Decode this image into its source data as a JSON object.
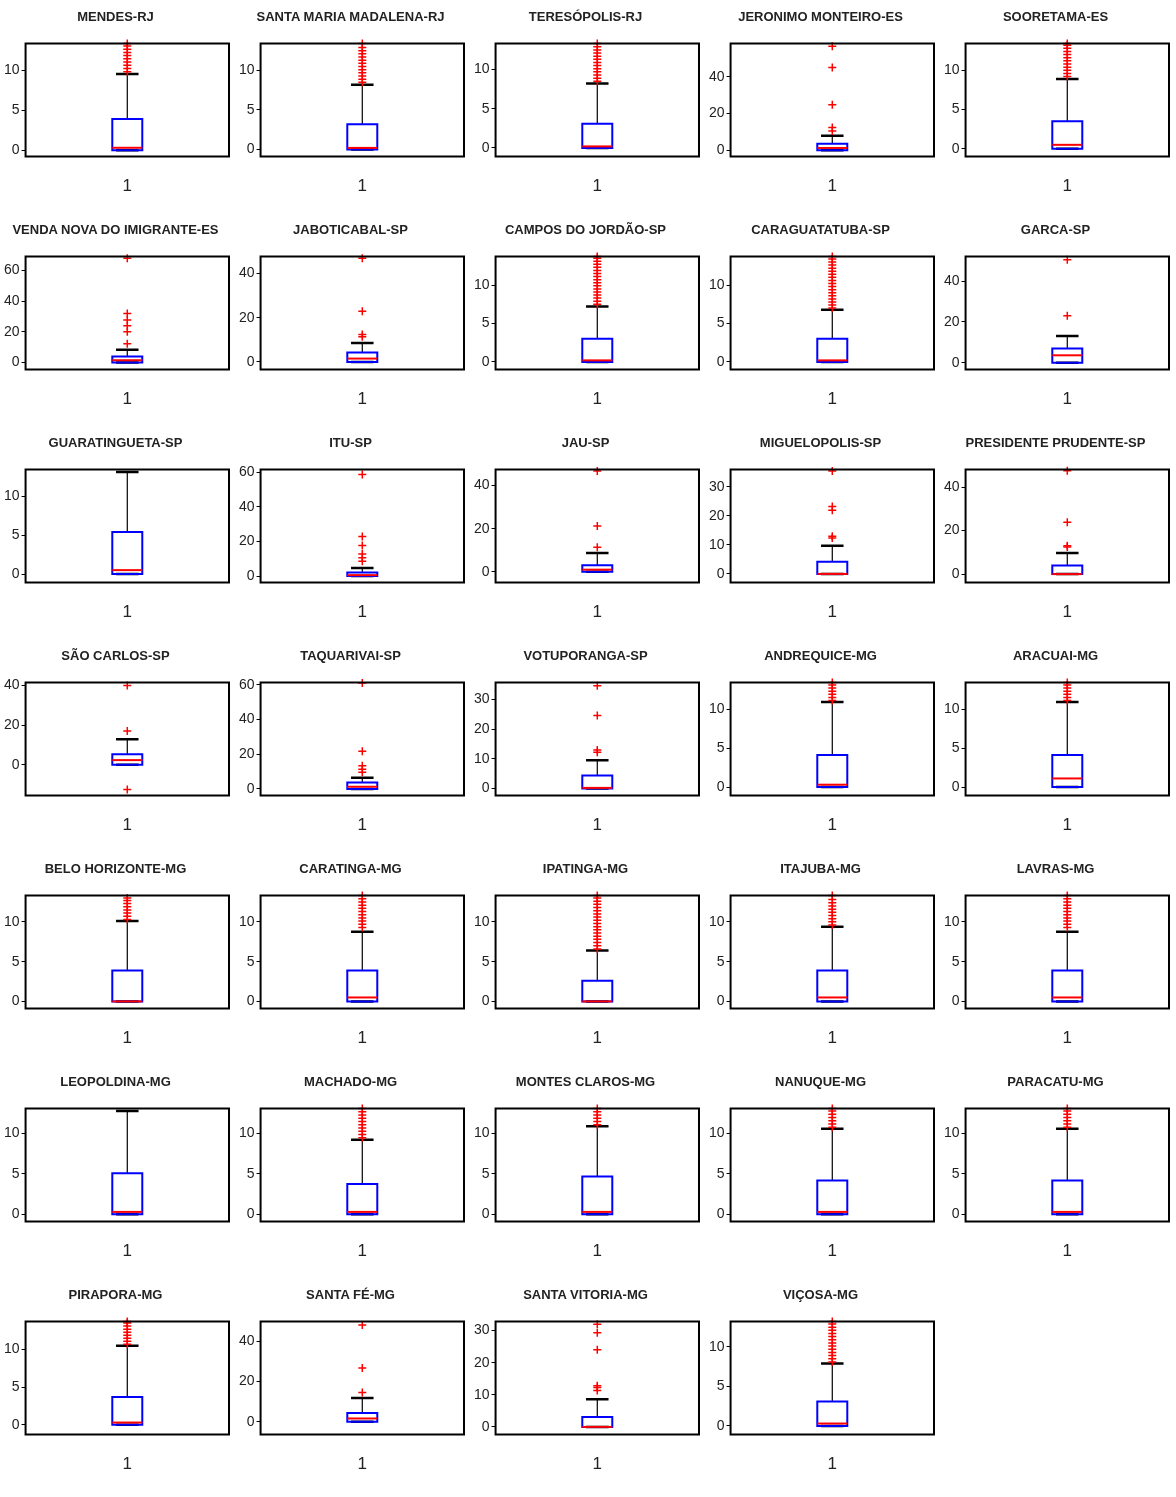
{
  "chart_data": [
    {
      "type": "box",
      "title": "MENDES-RJ",
      "categories": [
        "1"
      ],
      "ylim": [
        -0.8,
        13.3
      ],
      "yticks": [
        0,
        5,
        10
      ],
      "boxes": [
        {
          "low": 0,
          "q1": 0,
          "median": 0.3,
          "q3": 3.9,
          "high": 9.5,
          "outliers": [
            9.8,
            10.2,
            10.6,
            11,
            11.4,
            11.8,
            12.2,
            12.6,
            13,
            13.3
          ]
        }
      ]
    },
    {
      "type": "box",
      "title": "SANTA MARIA MADALENA-RJ",
      "categories": [
        "1"
      ],
      "ylim": [
        -0.9,
        13.4
      ],
      "yticks": [
        0,
        5,
        10
      ],
      "boxes": [
        {
          "low": 0,
          "q1": 0,
          "median": 0.2,
          "q3": 3.2,
          "high": 8.2,
          "outliers": [
            8.5,
            8.9,
            9.3,
            9.7,
            10.1,
            10.5,
            10.9,
            11.3,
            11.7,
            12.1,
            12.5,
            12.9,
            13.4
          ]
        }
      ]
    },
    {
      "type": "box",
      "title": "TERESÓPOLIS-RJ",
      "categories": [
        "1"
      ],
      "ylim": [
        -1.1,
        13.3
      ],
      "yticks": [
        0,
        5,
        10
      ],
      "boxes": [
        {
          "low": 0,
          "q1": 0,
          "median": 0.2,
          "q3": 3.1,
          "high": 8.2,
          "outliers": [
            8.5,
            8.9,
            9.3,
            9.7,
            10.1,
            10.5,
            10.9,
            11.3,
            11.7,
            12.1,
            12.5,
            12.9,
            13.3
          ]
        }
      ]
    },
    {
      "type": "box",
      "title": "JERONIMO MONTEIRO-ES",
      "categories": [
        "1"
      ],
      "ylim": [
        -3.5,
        58
      ],
      "yticks": [
        0,
        20,
        40
      ],
      "boxes": [
        {
          "low": 0,
          "q1": 0,
          "median": 1.2,
          "q3": 3.5,
          "high": 7.8,
          "outliers": [
            10.4,
            12.4,
            24.7,
            45,
            56.5
          ]
        }
      ]
    },
    {
      "type": "box",
      "title": "SOORETAMA-ES",
      "categories": [
        "1"
      ],
      "ylim": [
        -1,
        13.4
      ],
      "yticks": [
        0,
        5,
        10
      ],
      "boxes": [
        {
          "low": 0,
          "q1": 0,
          "median": 0.5,
          "q3": 3.5,
          "high": 8.9,
          "outliers": [
            9.2,
            9.6,
            10,
            10.4,
            10.8,
            11.2,
            11.6,
            12,
            12.4,
            12.8,
            13.2,
            13.4
          ]
        }
      ]
    },
    {
      "type": "box",
      "title": "VENDA NOVA DO IMIGRANTE-ES",
      "categories": [
        "1"
      ],
      "ylim": [
        -4.6,
        69
      ],
      "yticks": [
        0,
        20,
        40,
        60
      ],
      "boxes": [
        {
          "low": 0,
          "q1": 0,
          "median": 1.5,
          "q3": 4,
          "high": 8.3,
          "outliers": [
            12.2,
            20,
            24,
            27.7,
            32,
            68
          ]
        }
      ]
    },
    {
      "type": "box",
      "title": "JABOTICABAL-SP",
      "categories": [
        "1"
      ],
      "ylim": [
        -3.5,
        47.7
      ],
      "yticks": [
        0,
        20,
        40
      ],
      "boxes": [
        {
          "low": 0,
          "q1": 0,
          "median": 1.5,
          "q3": 4.2,
          "high": 8.6,
          "outliers": [
            11.4,
            12.4,
            22.9,
            47
          ]
        }
      ]
    },
    {
      "type": "box",
      "title": "CAMPOS DO JORDÃO-SP",
      "categories": [
        "1"
      ],
      "ylim": [
        -1,
        13.7
      ],
      "yticks": [
        0,
        5,
        10
      ],
      "boxes": [
        {
          "low": 0,
          "q1": 0,
          "median": 0.2,
          "q3": 3,
          "high": 7.2,
          "outliers": [
            7.5,
            7.9,
            8.3,
            8.7,
            9.1,
            9.5,
            9.9,
            10.3,
            10.7,
            11.1,
            11.5,
            11.9,
            12.3,
            12.7,
            13.1,
            13.5,
            13.7
          ]
        }
      ]
    },
    {
      "type": "box",
      "title": "CARAGUATATUBA-SP",
      "categories": [
        "1"
      ],
      "ylim": [
        -1,
        13.7
      ],
      "yticks": [
        0,
        5,
        10
      ],
      "boxes": [
        {
          "low": 0,
          "q1": 0,
          "median": 0.2,
          "q3": 3,
          "high": 6.8,
          "outliers": [
            7,
            7.4,
            7.8,
            8.2,
            8.6,
            9,
            9.4,
            9.8,
            10.2,
            10.6,
            11,
            11.4,
            11.8,
            12.2,
            12.6,
            13,
            13.4,
            13.7
          ]
        }
      ]
    },
    {
      "type": "box",
      "title": "GARCA-SP",
      "categories": [
        "1"
      ],
      "ylim": [
        -3.3,
        52
      ],
      "yticks": [
        0,
        20,
        40
      ],
      "boxes": [
        {
          "low": 0,
          "q1": 0,
          "median": 3.7,
          "q3": 7,
          "high": 13.2,
          "outliers": [
            23,
            50.5
          ]
        }
      ]
    },
    {
      "type": "box",
      "title": "GUARATINGUETA-SP",
      "categories": [
        "1"
      ],
      "ylim": [
        -1.1,
        13.4
      ],
      "yticks": [
        0,
        5,
        10
      ],
      "boxes": [
        {
          "low": 0,
          "q1": 0,
          "median": 0.5,
          "q3": 5.4,
          "high": 13.1
        }
      ]
    },
    {
      "type": "box",
      "title": "ITU-SP",
      "categories": [
        "1"
      ],
      "ylim": [
        -3.8,
        61.5
      ],
      "yticks": [
        0,
        20,
        40,
        60
      ],
      "boxes": [
        {
          "low": 0,
          "q1": 0,
          "median": 0.5,
          "q3": 2,
          "high": 4.6,
          "outliers": [
            8.6,
            10.6,
            12.7,
            17.7,
            22.8,
            58.7
          ]
        }
      ]
    },
    {
      "type": "box",
      "title": "JAU-SP",
      "categories": [
        "1"
      ],
      "ylim": [
        -5,
        47.4
      ],
      "yticks": [
        0,
        20,
        40
      ],
      "boxes": [
        {
          "low": 0,
          "q1": 0,
          "median": 1,
          "q3": 3,
          "high": 8.7,
          "outliers": [
            11.4,
            21.3,
            46.7
          ]
        }
      ]
    },
    {
      "type": "box",
      "title": "MIGUELOPOLIS-SP",
      "categories": [
        "1"
      ],
      "ylim": [
        -3,
        36
      ],
      "yticks": [
        0,
        10,
        20,
        30
      ],
      "boxes": [
        {
          "low": 0,
          "q1": 0,
          "median": 0,
          "q3": 4.2,
          "high": 9.7,
          "outliers": [
            12.4,
            13,
            22,
            23.3,
            35.5
          ]
        }
      ]
    },
    {
      "type": "box",
      "title": "PRESIDENTE PRUDENTE-SP",
      "categories": [
        "1"
      ],
      "ylim": [
        -3.9,
        48
      ],
      "yticks": [
        0,
        20,
        40
      ],
      "boxes": [
        {
          "low": 0,
          "q1": 0,
          "median": 0,
          "q3": 3.9,
          "high": 9.7,
          "outliers": [
            12.4,
            13,
            23.8,
            47.5
          ]
        }
      ]
    },
    {
      "type": "box",
      "title": "SÃO CARLOS-SP",
      "categories": [
        "1"
      ],
      "ylim": [
        -15.6,
        41.4
      ],
      "yticks": [
        0,
        20,
        40
      ],
      "boxes": [
        {
          "low": 0,
          "q1": 0,
          "median": 2.3,
          "q3": 5.3,
          "high": 12.8,
          "outliers": [
            -12.5,
            17,
            40
          ]
        }
      ]
    },
    {
      "type": "box",
      "title": "TAQUARIVAI-SP",
      "categories": [
        "1"
      ],
      "ylim": [
        -3.8,
        61.2
      ],
      "yticks": [
        0,
        20,
        40,
        60
      ],
      "boxes": [
        {
          "low": 0,
          "q1": 0,
          "median": 1.3,
          "q3": 3.8,
          "high": 6.4,
          "outliers": [
            9.6,
            11.4,
            13.4,
            21.7,
            61
          ]
        }
      ]
    },
    {
      "type": "box",
      "title": "VOTUPORANGA-SP",
      "categories": [
        "1"
      ],
      "ylim": [
        -2.4,
        35.7
      ],
      "yticks": [
        0,
        10,
        20,
        30
      ],
      "boxes": [
        {
          "low": 0,
          "q1": 0,
          "median": 0.2,
          "q3": 4.4,
          "high": 9.5,
          "outliers": [
            12.2,
            13,
            24.6,
            34.6
          ]
        }
      ]
    },
    {
      "type": "box",
      "title": "ANDREQUICE-MG",
      "categories": [
        "1"
      ],
      "ylim": [
        -1.1,
        13.4
      ],
      "yticks": [
        0,
        5,
        10
      ],
      "boxes": [
        {
          "low": 0,
          "q1": 0,
          "median": 0.3,
          "q3": 4.1,
          "high": 10.9,
          "outliers": [
            11.1,
            11.5,
            11.9,
            12.3,
            12.7,
            13.1,
            13.4
          ]
        }
      ]
    },
    {
      "type": "box",
      "title": "ARACUAI-MG",
      "categories": [
        "1"
      ],
      "ylim": [
        -1.1,
        13.4
      ],
      "yticks": [
        0,
        5,
        10
      ],
      "boxes": [
        {
          "low": 0,
          "q1": 0,
          "median": 1.1,
          "q3": 4.1,
          "high": 10.9,
          "outliers": [
            11.1,
            11.5,
            11.9,
            12.3,
            12.7,
            13.1,
            13.4
          ]
        }
      ]
    },
    {
      "type": "box",
      "title": "BELO HORIZONTE-MG",
      "categories": [
        "1"
      ],
      "ylim": [
        -0.9,
        13.3
      ],
      "yticks": [
        0,
        5,
        10
      ],
      "boxes": [
        {
          "low": 0,
          "q1": 0,
          "median": 0,
          "q3": 3.9,
          "high": 10.1,
          "outliers": [
            10.3,
            10.7,
            11.1,
            11.5,
            11.9,
            12.3,
            12.7,
            13
          ]
        }
      ]
    },
    {
      "type": "box",
      "title": "CARATINGA-MG",
      "categories": [
        "1"
      ],
      "ylim": [
        -0.9,
        13.3
      ],
      "yticks": [
        0,
        5,
        10
      ],
      "boxes": [
        {
          "low": 0,
          "q1": 0,
          "median": 0.5,
          "q3": 3.9,
          "high": 8.75,
          "outliers": [
            9.3,
            9.7,
            10.1,
            10.5,
            10.9,
            11.3,
            11.7,
            12.1,
            12.5,
            12.9,
            13.3
          ]
        }
      ]
    },
    {
      "type": "box",
      "title": "IPATINGA-MG",
      "categories": [
        "1"
      ],
      "ylim": [
        -0.9,
        13.3
      ],
      "yticks": [
        0,
        5,
        10
      ],
      "boxes": [
        {
          "low": 0,
          "q1": 0,
          "median": 0,
          "q3": 2.6,
          "high": 6.4,
          "outliers": [
            6.6,
            7,
            7.4,
            7.8,
            8.2,
            8.6,
            9,
            9.4,
            9.8,
            10.2,
            10.6,
            11,
            11.4,
            11.8,
            12.2,
            12.6,
            13,
            13.3
          ]
        }
      ]
    },
    {
      "type": "box",
      "title": "ITAJUBA-MG",
      "categories": [
        "1"
      ],
      "ylim": [
        -0.9,
        13.3
      ],
      "yticks": [
        0,
        5,
        10
      ],
      "boxes": [
        {
          "low": 0,
          "q1": 0,
          "median": 0.5,
          "q3": 3.9,
          "high": 9.4,
          "outliers": [
            9.6,
            10,
            10.4,
            10.8,
            11.2,
            11.6,
            12,
            12.4,
            12.8,
            13.3
          ]
        }
      ]
    },
    {
      "type": "box",
      "title": "LAVRAS-MG",
      "categories": [
        "1"
      ],
      "ylim": [
        -0.9,
        13.3
      ],
      "yticks": [
        0,
        5,
        10
      ],
      "boxes": [
        {
          "low": 0,
          "q1": 0,
          "median": 0.5,
          "q3": 3.9,
          "high": 8.75,
          "outliers": [
            9.3,
            9.7,
            10.1,
            10.5,
            10.9,
            11.3,
            11.7,
            12.1,
            12.5,
            12.9,
            13.3
          ]
        }
      ]
    },
    {
      "type": "box",
      "title": "LEOPOLDINA-MG",
      "categories": [
        "1"
      ],
      "ylim": [
        -0.9,
        13.1
      ],
      "yticks": [
        0,
        5,
        10
      ],
      "boxes": [
        {
          "low": 0,
          "q1": 0,
          "median": 0.3,
          "q3": 5.1,
          "high": 12.8
        }
      ]
    },
    {
      "type": "box",
      "title": "MACHADO-MG",
      "categories": [
        "1"
      ],
      "ylim": [
        -0.9,
        13.1
      ],
      "yticks": [
        0,
        5,
        10
      ],
      "boxes": [
        {
          "low": 0,
          "q1": 0,
          "median": 0.3,
          "q3": 3.75,
          "high": 9.25,
          "outliers": [
            9.5,
            9.9,
            10.3,
            10.7,
            11.1,
            11.5,
            11.9,
            12.3,
            12.7,
            13.1
          ]
        }
      ]
    },
    {
      "type": "box",
      "title": "MONTES CLAROS-MG",
      "categories": [
        "1"
      ],
      "ylim": [
        -0.9,
        13.1
      ],
      "yticks": [
        0,
        5,
        10
      ],
      "boxes": [
        {
          "low": 0,
          "q1": 0,
          "median": 0.3,
          "q3": 4.7,
          "high": 10.9,
          "outliers": [
            11.1,
            11.5,
            11.9,
            12.3,
            12.7,
            13.1
          ]
        }
      ]
    },
    {
      "type": "box",
      "title": "NANUQUE-MG",
      "categories": [
        "1"
      ],
      "ylim": [
        -0.9,
        13.1
      ],
      "yticks": [
        0,
        5,
        10
      ],
      "boxes": [
        {
          "low": 0,
          "q1": 0,
          "median": 0.3,
          "q3": 4.2,
          "high": 10.6,
          "outliers": [
            10.8,
            11.2,
            11.6,
            12,
            12.4,
            12.8,
            13.1
          ]
        }
      ]
    },
    {
      "type": "box",
      "title": "PARACATU-MG",
      "categories": [
        "1"
      ],
      "ylim": [
        -0.9,
        13.1
      ],
      "yticks": [
        0,
        5,
        10
      ],
      "boxes": [
        {
          "low": 0,
          "q1": 0,
          "median": 0.3,
          "q3": 4.2,
          "high": 10.6,
          "outliers": [
            10.8,
            11.2,
            11.6,
            12,
            12.4,
            12.8,
            13.1
          ]
        }
      ]
    },
    {
      "type": "box",
      "title": "PIRAPORA-MG",
      "categories": [
        "1"
      ],
      "ylim": [
        -1.3,
        13.7
      ],
      "yticks": [
        0,
        5,
        10
      ],
      "boxes": [
        {
          "low": 0,
          "q1": 0,
          "median": 0.3,
          "q3": 3.7,
          "high": 10.5,
          "outliers": [
            10.7,
            11.1,
            11.5,
            11.9,
            12.3,
            12.7,
            13.1,
            13.5,
            13.7
          ]
        }
      ]
    },
    {
      "type": "box",
      "title": "SANTA FÉ-MG",
      "categories": [
        "1"
      ],
      "ylim": [
        -6.4,
        49.7
      ],
      "yticks": [
        0,
        20,
        40
      ],
      "boxes": [
        {
          "low": 0,
          "q1": 0,
          "median": 1.6,
          "q3": 4.3,
          "high": 11.8,
          "outliers": [
            14.5,
            26.7,
            48
          ]
        }
      ]
    },
    {
      "type": "box",
      "title": "SANTA VITORIA-MG",
      "categories": [
        "1"
      ],
      "ylim": [
        -2.4,
        32.8
      ],
      "yticks": [
        0,
        10,
        20,
        30
      ],
      "boxes": [
        {
          "low": 0,
          "q1": 0,
          "median": 0,
          "q3": 3.1,
          "high": 8.6,
          "outliers": [
            11.3,
            12.3,
            12.8,
            24,
            29.3,
            32
          ]
        }
      ]
    },
    {
      "type": "box",
      "title": "VIÇOSA-MG",
      "categories": [
        "1"
      ],
      "ylim": [
        -1.1,
        13.2
      ],
      "yticks": [
        0,
        5,
        10
      ],
      "boxes": [
        {
          "low": 0,
          "q1": 0,
          "median": 0.3,
          "q3": 3.1,
          "high": 7.9,
          "outliers": [
            8.1,
            8.5,
            8.9,
            9.3,
            9.7,
            10.1,
            10.5,
            10.9,
            11.3,
            11.7,
            12.1,
            12.5,
            12.9,
            13.2
          ]
        }
      ]
    }
  ]
}
